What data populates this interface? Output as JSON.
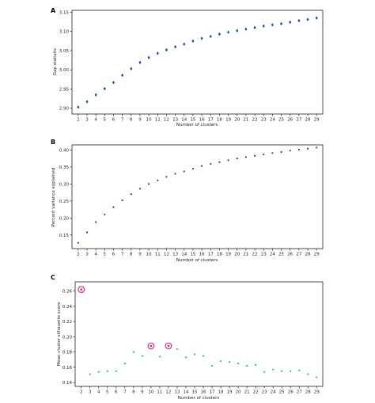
{
  "chart_data": [
    {
      "panel": "A",
      "type": "scatter",
      "xlabel": "Number of clusters",
      "ylabel": "Gap statistic",
      "x": [
        2,
        3,
        4,
        5,
        6,
        7,
        8,
        9,
        10,
        11,
        12,
        13,
        14,
        15,
        16,
        17,
        18,
        19,
        20,
        21,
        22,
        23,
        24,
        25,
        26,
        27,
        28,
        29
      ],
      "y": [
        2.903,
        2.917,
        2.935,
        2.951,
        2.967,
        2.986,
        3.003,
        3.019,
        3.032,
        3.043,
        3.052,
        3.06,
        3.067,
        3.075,
        3.082,
        3.087,
        3.093,
        3.098,
        3.102,
        3.106,
        3.11,
        3.114,
        3.117,
        3.12,
        3.124,
        3.128,
        3.131,
        3.135
      ],
      "error": 0.004,
      "xlim": [
        1.3,
        29.7
      ],
      "ylim": [
        2.885,
        3.155
      ],
      "xticks": [
        2,
        3,
        4,
        5,
        6,
        7,
        8,
        9,
        10,
        11,
        12,
        13,
        14,
        15,
        16,
        17,
        18,
        19,
        20,
        21,
        22,
        23,
        24,
        25,
        26,
        27,
        28,
        29
      ],
      "yticks": [
        2.9,
        2.95,
        3.0,
        3.05,
        3.1,
        3.15
      ],
      "ytick_labels": [
        "2.90",
        "2.95",
        "3.00",
        "3.05",
        "3.10",
        "3.15"
      ],
      "color": "#1f3fbf",
      "error_color": "#3a8fd8"
    },
    {
      "panel": "B",
      "type": "scatter",
      "xlabel": "Number of clusters",
      "ylabel": "Percent variance explained",
      "x": [
        2,
        3,
        4,
        5,
        6,
        7,
        8,
        9,
        10,
        11,
        12,
        13,
        14,
        15,
        16,
        17,
        18,
        19,
        20,
        21,
        22,
        23,
        24,
        25,
        26,
        27,
        28,
        29
      ],
      "y": [
        0.127,
        0.158,
        0.188,
        0.21,
        0.232,
        0.252,
        0.27,
        0.286,
        0.3,
        0.311,
        0.321,
        0.33,
        0.337,
        0.345,
        0.353,
        0.359,
        0.364,
        0.37,
        0.375,
        0.379,
        0.383,
        0.387,
        0.391,
        0.394,
        0.398,
        0.401,
        0.404,
        0.407
      ],
      "xlim": [
        1.3,
        29.7
      ],
      "ylim": [
        0.11,
        0.415
      ],
      "xticks": [
        2,
        3,
        4,
        5,
        6,
        7,
        8,
        9,
        10,
        11,
        12,
        13,
        14,
        15,
        16,
        17,
        18,
        19,
        20,
        21,
        22,
        23,
        24,
        25,
        26,
        27,
        28,
        29
      ],
      "yticks": [
        0.15,
        0.2,
        0.25,
        0.3,
        0.35,
        0.4
      ],
      "ytick_labels": [
        "0.15",
        "0.20",
        "0.25",
        "0.30",
        "0.35",
        "0.40"
      ],
      "color": "#1f3fbf"
    },
    {
      "panel": "C",
      "type": "scatter",
      "xlabel": "Number of clusters",
      "ylabel": "Mean cluster silhouette score",
      "x": [
        2,
        3,
        4,
        5,
        6,
        7,
        8,
        9,
        10,
        11,
        12,
        13,
        14,
        15,
        16,
        17,
        18,
        19,
        20,
        21,
        22,
        23,
        24,
        25,
        26,
        27,
        28,
        29
      ],
      "y": [
        0.262,
        0.151,
        0.154,
        0.155,
        0.155,
        0.165,
        0.18,
        0.175,
        0.188,
        0.174,
        0.188,
        0.184,
        0.173,
        0.177,
        0.175,
        0.162,
        0.168,
        0.167,
        0.165,
        0.162,
        0.163,
        0.154,
        0.157,
        0.155,
        0.155,
        0.156,
        0.151,
        0.147
      ],
      "highlighted_x": [
        2,
        10,
        12
      ],
      "xlim": [
        1.3,
        29.7
      ],
      "ylim": [
        0.135,
        0.272
      ],
      "xticks": [
        2,
        3,
        4,
        5,
        6,
        7,
        8,
        9,
        10,
        11,
        12,
        13,
        14,
        15,
        16,
        17,
        18,
        19,
        20,
        21,
        22,
        23,
        24,
        25,
        26,
        27,
        28,
        29
      ],
      "yticks": [
        0.14,
        0.16,
        0.18,
        0.2,
        0.22,
        0.24,
        0.26
      ],
      "ytick_labels": [
        "0.14",
        "0.16",
        "0.18",
        "0.20",
        "0.22",
        "0.24",
        "0.26"
      ],
      "color": "#1fb8c8",
      "highlight_color": "#e0207a"
    }
  ]
}
